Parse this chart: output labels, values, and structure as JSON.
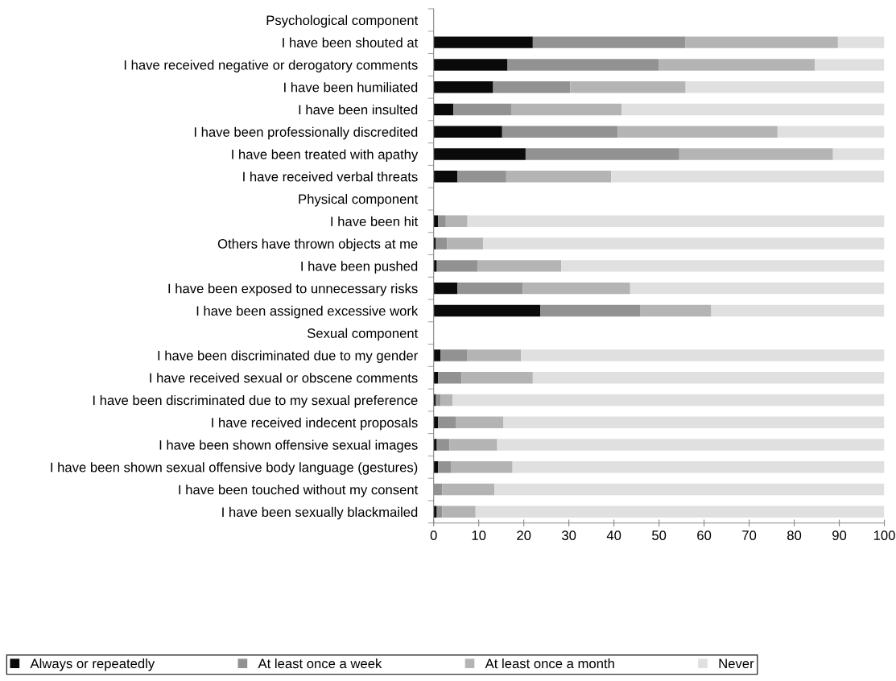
{
  "chart_data": {
    "type": "bar",
    "orientation": "horizontal",
    "stacked": true,
    "categories": [
      "Psychological component",
      "I have been shouted at",
      "I have received negative or derogatory comments",
      "I have been humiliated",
      "I have been insulted",
      "I have been professionally discredited",
      "I have been treated with apathy",
      "I have received verbal threats",
      "Physical component",
      "I have been hit",
      "Others have thrown objects at me",
      "I have been pushed",
      "I have been exposed to unnecessary risks",
      "I have been assigned excessive work",
      "Sexual component",
      "I have been discriminated due to my gender",
      "I have received sexual or obscene comments",
      "I have been discriminated due to my sexual preference",
      "I have received indecent proposals",
      "I have been shown offensive sexual images",
      "I have been shown sexual offensive body language (gestures)",
      "I have been touched without my consent",
      "I have been sexually blackmailed"
    ],
    "series": [
      {
        "name": "Always or repeatedly",
        "color": "#0a0a0a",
        "values": [
          null,
          22.0,
          16.4,
          13.2,
          4.4,
          15.2,
          20.4,
          5.3,
          null,
          1.0,
          0.5,
          0.7,
          5.3,
          23.7,
          null,
          1.5,
          1.0,
          0.5,
          1.0,
          0.7,
          1.0,
          0,
          0.7
        ]
      },
      {
        "name": "At least once a week",
        "color": "#929292",
        "values": [
          null,
          33.9,
          33.5,
          17.1,
          12.8,
          25.6,
          34.1,
          10.8,
          null,
          1.7,
          2.5,
          9.1,
          14.5,
          22.2,
          null,
          6.0,
          5.2,
          1.0,
          4.0,
          2.8,
          2.8,
          1.9,
          1.2
        ]
      },
      {
        "name": "At least once a month",
        "color": "#b4b4b4",
        "values": [
          null,
          33.8,
          34.7,
          25.6,
          24.5,
          35.5,
          34.1,
          23.3,
          null,
          4.8,
          8.0,
          18.5,
          23.8,
          15.7,
          null,
          11.9,
          15.8,
          2.7,
          10.5,
          10.6,
          13.7,
          11.6,
          7.4
        ]
      },
      {
        "name": "Never",
        "color": "#e0e0e0",
        "values": [
          null,
          10.3,
          15.4,
          44.1,
          58.3,
          23.7,
          11.4,
          60.6,
          null,
          92.5,
          89.0,
          71.7,
          56.4,
          38.4,
          null,
          80.6,
          78.0,
          95.8,
          84.5,
          85.9,
          82.5,
          86.5,
          90.7
        ]
      }
    ],
    "xlim": [
      0,
      100
    ],
    "xticks": [
      0,
      10,
      20,
      30,
      40,
      50,
      60,
      70,
      80,
      90,
      100
    ],
    "grid": false,
    "legend": "bottom"
  }
}
